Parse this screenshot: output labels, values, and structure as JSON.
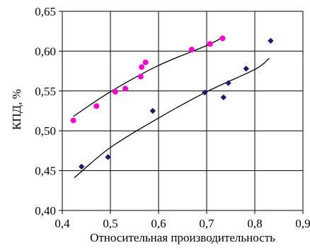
{
  "chart_data": {
    "type": "scatter",
    "title": "",
    "xlabel": "Относительная производительность",
    "ylabel": "КПД, %",
    "xlim": [
      0.4,
      0.9
    ],
    "ylim": [
      0.4,
      0.65
    ],
    "grid": true,
    "legend": "none",
    "x_ticks": [
      "0,4",
      "0,5",
      "0,6",
      "0,7",
      "0,8",
      "0,9"
    ],
    "y_ticks": [
      "0,40",
      "0,45",
      "0,50",
      "0,55",
      "0,60",
      "0,65"
    ],
    "series": [
      {
        "marker": "circle",
        "color": "#ff00cc",
        "points": [
          [
            0.423,
            0.513
          ],
          [
            0.471,
            0.531
          ],
          [
            0.51,
            0.549
          ],
          [
            0.531,
            0.553
          ],
          [
            0.563,
            0.568
          ],
          [
            0.565,
            0.58
          ],
          [
            0.573,
            0.586
          ],
          [
            0.669,
            0.602
          ],
          [
            0.707,
            0.609
          ],
          [
            0.733,
            0.616
          ]
        ],
        "trend": [
          [
            0.423,
            0.518
          ],
          [
            0.5,
            0.549
          ],
          [
            0.6,
            0.582
          ],
          [
            0.7,
            0.607
          ],
          [
            0.735,
            0.618
          ]
        ]
      },
      {
        "marker": "diamond",
        "color": "#1a1a6e",
        "points": [
          [
            0.44,
            0.455
          ],
          [
            0.495,
            0.467
          ],
          [
            0.588,
            0.525
          ],
          [
            0.696,
            0.548
          ],
          [
            0.735,
            0.542
          ],
          [
            0.745,
            0.56
          ],
          [
            0.782,
            0.578
          ],
          [
            0.833,
            0.613
          ]
        ],
        "trend": [
          [
            0.425,
            0.441
          ],
          [
            0.5,
            0.479
          ],
          [
            0.6,
            0.516
          ],
          [
            0.7,
            0.549
          ],
          [
            0.8,
            0.577
          ],
          [
            0.83,
            0.591
          ]
        ]
      }
    ]
  }
}
